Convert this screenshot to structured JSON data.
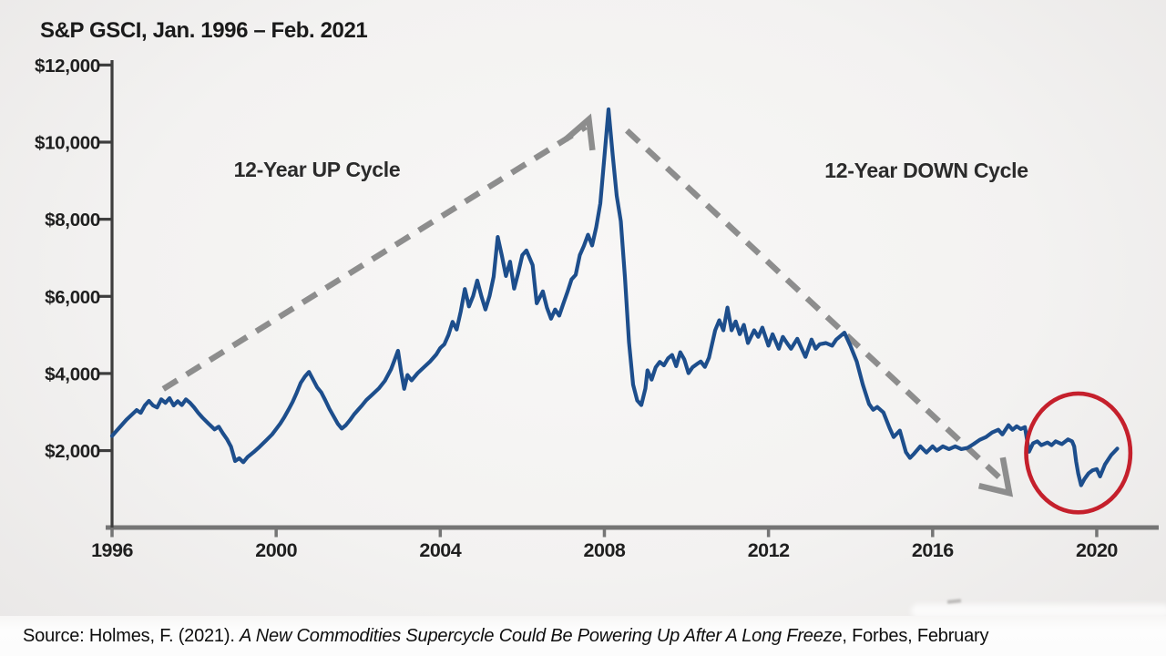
{
  "header": {
    "title": "S&P GSCI, Jan. 1996 – Feb. 2021"
  },
  "annotations": {
    "up_cycle_label": "12-Year UP Cycle",
    "down_cycle_label": "12-Year DOWN Cycle"
  },
  "source_line": {
    "prefix": "Source: Holmes, F. (2021). ",
    "work_title": "A New Commodities Supercycle Could Be Powering Up After A Long Freeze",
    "suffix": ", Forbes, February"
  },
  "colors": {
    "line": "#1d4e8c",
    "dashed_arrow": "#8d8d8d",
    "highlight_circle": "#c5202c",
    "axis_y": "#3d3d3d",
    "axis_x": "#757575",
    "text": "#1a1a1a",
    "background": "#f2f1f0",
    "source_strip": "#fcfcfc"
  },
  "chart_data": {
    "type": "line",
    "title": "S&P GSCI, Jan. 1996 – Feb. 2021",
    "xlabel": "",
    "ylabel": "",
    "xlim": [
      1996,
      2021.3
    ],
    "ylim": [
      0,
      12400
    ],
    "grid": false,
    "legend": "none",
    "x_ticks": [
      {
        "value": 1996,
        "label": "1996"
      },
      {
        "value": 2000,
        "label": "2000"
      },
      {
        "value": 2004,
        "label": "2004"
      },
      {
        "value": 2008,
        "label": "2008"
      },
      {
        "value": 2012,
        "label": "2012"
      },
      {
        "value": 2016,
        "label": "2016"
      },
      {
        "value": 2020,
        "label": "2020"
      }
    ],
    "y_ticks": [
      {
        "value": 2000,
        "label": "$2,000"
      },
      {
        "value": 4000,
        "label": "$4,000"
      },
      {
        "value": 6000,
        "label": "$6,000"
      },
      {
        "value": 8000,
        "label": "$8,000"
      },
      {
        "value": 10000,
        "label": "$10,000"
      },
      {
        "value": 12000,
        "label": "$12,000"
      }
    ],
    "series": [
      {
        "name": "S&P GSCI index level",
        "color": "#1d4e8c",
        "points": [
          [
            1996.0,
            2380
          ],
          [
            1996.1,
            2500
          ],
          [
            1996.2,
            2620
          ],
          [
            1996.35,
            2800
          ],
          [
            1996.5,
            2950
          ],
          [
            1996.6,
            3050
          ],
          [
            1996.7,
            2980
          ],
          [
            1996.8,
            3170
          ],
          [
            1996.9,
            3290
          ],
          [
            1997.0,
            3170
          ],
          [
            1997.1,
            3120
          ],
          [
            1997.2,
            3330
          ],
          [
            1997.3,
            3240
          ],
          [
            1997.4,
            3360
          ],
          [
            1997.5,
            3170
          ],
          [
            1997.6,
            3280
          ],
          [
            1997.7,
            3180
          ],
          [
            1997.8,
            3330
          ],
          [
            1997.9,
            3240
          ],
          [
            1998.0,
            3120
          ],
          [
            1998.1,
            2980
          ],
          [
            1998.2,
            2860
          ],
          [
            1998.35,
            2700
          ],
          [
            1998.5,
            2550
          ],
          [
            1998.6,
            2620
          ],
          [
            1998.7,
            2450
          ],
          [
            1998.8,
            2300
          ],
          [
            1998.9,
            2100
          ],
          [
            1999.0,
            1730
          ],
          [
            1999.1,
            1800
          ],
          [
            1999.2,
            1700
          ],
          [
            1999.3,
            1830
          ],
          [
            1999.45,
            1960
          ],
          [
            1999.6,
            2100
          ],
          [
            1999.75,
            2260
          ],
          [
            1999.9,
            2420
          ],
          [
            2000.0,
            2560
          ],
          [
            2000.1,
            2700
          ],
          [
            2000.2,
            2870
          ],
          [
            2000.3,
            3060
          ],
          [
            2000.4,
            3260
          ],
          [
            2000.5,
            3500
          ],
          [
            2000.6,
            3760
          ],
          [
            2000.7,
            3920
          ],
          [
            2000.8,
            4040
          ],
          [
            2000.9,
            3840
          ],
          [
            2001.0,
            3640
          ],
          [
            2001.1,
            3510
          ],
          [
            2001.2,
            3300
          ],
          [
            2001.3,
            3080
          ],
          [
            2001.4,
            2890
          ],
          [
            2001.5,
            2700
          ],
          [
            2001.6,
            2570
          ],
          [
            2001.7,
            2660
          ],
          [
            2001.8,
            2790
          ],
          [
            2001.9,
            2940
          ],
          [
            2002.0,
            3060
          ],
          [
            2002.1,
            3180
          ],
          [
            2002.2,
            3310
          ],
          [
            2002.35,
            3460
          ],
          [
            2002.5,
            3610
          ],
          [
            2002.65,
            3810
          ],
          [
            2002.8,
            4110
          ],
          [
            2002.9,
            4390
          ],
          [
            2002.97,
            4590
          ],
          [
            2003.05,
            4030
          ],
          [
            2003.12,
            3600
          ],
          [
            2003.2,
            3960
          ],
          [
            2003.3,
            3820
          ],
          [
            2003.45,
            4010
          ],
          [
            2003.6,
            4160
          ],
          [
            2003.75,
            4310
          ],
          [
            2003.9,
            4490
          ],
          [
            2004.0,
            4660
          ],
          [
            2004.1,
            4760
          ],
          [
            2004.2,
            5000
          ],
          [
            2004.3,
            5340
          ],
          [
            2004.4,
            5140
          ],
          [
            2004.5,
            5610
          ],
          [
            2004.6,
            6190
          ],
          [
            2004.7,
            5740
          ],
          [
            2004.8,
            6010
          ],
          [
            2004.9,
            6410
          ],
          [
            2005.0,
            6010
          ],
          [
            2005.1,
            5660
          ],
          [
            2005.2,
            6010
          ],
          [
            2005.3,
            6510
          ],
          [
            2005.4,
            7540
          ],
          [
            2005.5,
            7060
          ],
          [
            2005.6,
            6530
          ],
          [
            2005.7,
            6900
          ],
          [
            2005.8,
            6200
          ],
          [
            2005.9,
            6610
          ],
          [
            2006.0,
            7070
          ],
          [
            2006.1,
            7190
          ],
          [
            2006.25,
            6810
          ],
          [
            2006.35,
            5820
          ],
          [
            2006.5,
            6130
          ],
          [
            2006.6,
            5710
          ],
          [
            2006.7,
            5420
          ],
          [
            2006.8,
            5660
          ],
          [
            2006.9,
            5500
          ],
          [
            2007.0,
            5810
          ],
          [
            2007.1,
            6110
          ],
          [
            2007.2,
            6440
          ],
          [
            2007.3,
            6560
          ],
          [
            2007.4,
            7070
          ],
          [
            2007.5,
            7310
          ],
          [
            2007.6,
            7600
          ],
          [
            2007.7,
            7320
          ],
          [
            2007.8,
            7790
          ],
          [
            2007.9,
            8410
          ],
          [
            2008.0,
            9620
          ],
          [
            2008.1,
            10850
          ],
          [
            2008.2,
            9690
          ],
          [
            2008.3,
            8610
          ],
          [
            2008.4,
            7950
          ],
          [
            2008.5,
            6510
          ],
          [
            2008.6,
            4810
          ],
          [
            2008.7,
            3710
          ],
          [
            2008.8,
            3300
          ],
          [
            2008.9,
            3180
          ],
          [
            2009.0,
            3610
          ],
          [
            2009.05,
            4080
          ],
          [
            2009.15,
            3840
          ],
          [
            2009.25,
            4160
          ],
          [
            2009.35,
            4300
          ],
          [
            2009.45,
            4210
          ],
          [
            2009.55,
            4390
          ],
          [
            2009.65,
            4480
          ],
          [
            2009.75,
            4190
          ],
          [
            2009.85,
            4550
          ],
          [
            2009.95,
            4360
          ],
          [
            2010.05,
            4010
          ],
          [
            2010.15,
            4160
          ],
          [
            2010.25,
            4240
          ],
          [
            2010.35,
            4310
          ],
          [
            2010.45,
            4170
          ],
          [
            2010.55,
            4410
          ],
          [
            2010.7,
            5120
          ],
          [
            2010.8,
            5380
          ],
          [
            2010.9,
            5120
          ],
          [
            2011.0,
            5710
          ],
          [
            2011.1,
            5120
          ],
          [
            2011.2,
            5350
          ],
          [
            2011.3,
            5020
          ],
          [
            2011.4,
            5260
          ],
          [
            2011.5,
            4790
          ],
          [
            2011.65,
            5120
          ],
          [
            2011.75,
            4950
          ],
          [
            2011.85,
            5190
          ],
          [
            2012.0,
            4720
          ],
          [
            2012.1,
            5020
          ],
          [
            2012.25,
            4640
          ],
          [
            2012.35,
            4950
          ],
          [
            2012.45,
            4790
          ],
          [
            2012.55,
            4640
          ],
          [
            2012.7,
            4900
          ],
          [
            2012.9,
            4430
          ],
          [
            2013.05,
            4880
          ],
          [
            2013.15,
            4640
          ],
          [
            2013.25,
            4760
          ],
          [
            2013.4,
            4790
          ],
          [
            2013.55,
            4720
          ],
          [
            2013.65,
            4880
          ],
          [
            2013.85,
            5060
          ],
          [
            2014.0,
            4710
          ],
          [
            2014.15,
            4310
          ],
          [
            2014.3,
            3710
          ],
          [
            2014.45,
            3210
          ],
          [
            2014.55,
            3060
          ],
          [
            2014.65,
            3130
          ],
          [
            2014.8,
            2990
          ],
          [
            2014.95,
            2590
          ],
          [
            2015.05,
            2350
          ],
          [
            2015.2,
            2520
          ],
          [
            2015.35,
            1960
          ],
          [
            2015.45,
            1810
          ],
          [
            2015.55,
            1920
          ],
          [
            2015.7,
            2110
          ],
          [
            2015.85,
            1950
          ],
          [
            2016.0,
            2110
          ],
          [
            2016.1,
            2000
          ],
          [
            2016.25,
            2110
          ],
          [
            2016.4,
            2040
          ],
          [
            2016.55,
            2110
          ],
          [
            2016.7,
            2040
          ],
          [
            2016.85,
            2070
          ],
          [
            2017.0,
            2170
          ],
          [
            2017.15,
            2280
          ],
          [
            2017.3,
            2350
          ],
          [
            2017.45,
            2470
          ],
          [
            2017.6,
            2540
          ],
          [
            2017.7,
            2420
          ],
          [
            2017.85,
            2660
          ],
          [
            2017.95,
            2540
          ],
          [
            2018.05,
            2630
          ],
          [
            2018.15,
            2560
          ],
          [
            2018.25,
            2610
          ],
          [
            2018.35,
            1970
          ],
          [
            2018.45,
            2190
          ],
          [
            2018.55,
            2240
          ],
          [
            2018.65,
            2140
          ],
          [
            2018.8,
            2210
          ],
          [
            2018.9,
            2140
          ],
          [
            2019.0,
            2240
          ],
          [
            2019.15,
            2170
          ],
          [
            2019.3,
            2290
          ],
          [
            2019.4,
            2240
          ],
          [
            2019.45,
            2110
          ],
          [
            2019.5,
            1710
          ],
          [
            2019.55,
            1400
          ],
          [
            2019.62,
            1100
          ],
          [
            2019.7,
            1260
          ],
          [
            2019.8,
            1410
          ],
          [
            2019.9,
            1490
          ],
          [
            2020.0,
            1520
          ],
          [
            2020.08,
            1330
          ],
          [
            2020.2,
            1640
          ],
          [
            2020.35,
            1880
          ],
          [
            2020.5,
            2050
          ]
        ]
      }
    ],
    "annotations": {
      "up_trend_arrow": {
        "style": "dashed",
        "color": "#8d8d8d",
        "from": [
          1997.25,
          3600
        ],
        "to": [
          2007.55,
          10400
        ],
        "head": [
          [
            2007.06,
            10070
          ],
          [
            2007.62,
            10590
          ],
          [
            2007.71,
            9790
          ]
        ]
      },
      "down_trend_arrow": {
        "style": "dashed",
        "color": "#8d8d8d",
        "from": [
          2008.55,
          10300
        ],
        "to": [
          2017.65,
          1280
        ],
        "head": [
          [
            2017.71,
            1820
          ],
          [
            2017.87,
            898
          ],
          [
            2017.13,
            1087
          ]
        ]
      },
      "highlight_ellipse": {
        "color": "#c5202c",
        "center": [
          2019.55,
          1940
        ],
        "rx_years": 1.27,
        "ry_dollars": 1540
      }
    }
  }
}
